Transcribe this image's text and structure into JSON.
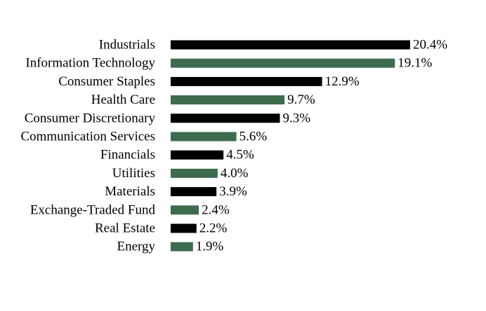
{
  "chart_data": {
    "type": "bar",
    "orientation": "horizontal",
    "categories": [
      "Industrials",
      "Information Technology",
      "Consumer Staples",
      "Health Care",
      "Consumer Discretionary",
      "Communication Services",
      "Financials",
      "Utilities",
      "Materials",
      "Exchange-Traded Fund",
      "Real Estate",
      "Energy"
    ],
    "values": [
      20.4,
      19.1,
      12.9,
      9.7,
      9.3,
      5.6,
      4.5,
      4.0,
      3.9,
      2.4,
      2.2,
      1.9
    ],
    "value_labels": [
      "20.4%",
      "19.1%",
      "12.9%",
      "9.7%",
      "9.3%",
      "5.6%",
      "4.5%",
      "4.0%",
      "3.9%",
      "2.4%",
      "2.2%",
      "1.9%"
    ],
    "bar_colors": [
      "#000000",
      "#3d6b4e"
    ],
    "xlim": [
      0,
      20.4
    ],
    "grid": false,
    "legend": "none"
  }
}
